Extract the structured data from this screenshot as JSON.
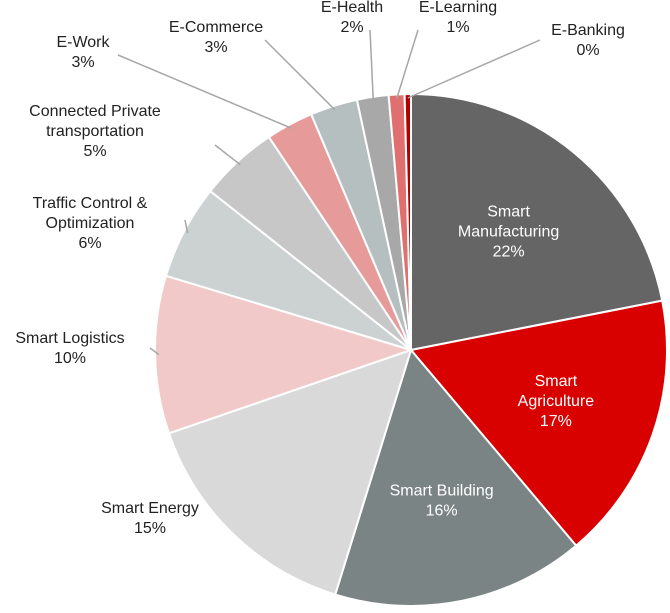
{
  "chart_data": {
    "type": "pie",
    "title": "",
    "start_angle_deg": 0,
    "direction": "clockwise",
    "slices": [
      {
        "name": "Smart Manufacturing",
        "label_lines": [
          "Smart",
          "Manufacturing"
        ],
        "value": 22,
        "display": "22%",
        "color": "#656565",
        "label_color": "#ffffff",
        "label_inside": true
      },
      {
        "name": "Smart Agriculture",
        "label_lines": [
          "Smart",
          "Agriculture"
        ],
        "value": 17,
        "display": "17%",
        "color": "#d90000",
        "label_color": "#ffffff",
        "label_inside": true
      },
      {
        "name": "Smart Building",
        "label_lines": [
          "Smart Building"
        ],
        "value": 16,
        "display": "16%",
        "color": "#7b8484",
        "label_color": "#ffffff",
        "label_inside": true
      },
      {
        "name": "Smart Energy",
        "label_lines": [
          "Smart Energy"
        ],
        "value": 15,
        "display": "15%",
        "color": "#d9d9d9",
        "label_color": "#222222",
        "label_inside": false
      },
      {
        "name": "Smart Logistics",
        "label_lines": [
          "Smart Logistics"
        ],
        "value": 10,
        "display": "10%",
        "color": "#f2c9c9",
        "label_color": "#222222",
        "label_inside": false
      },
      {
        "name": "Traffic Control & Optimization",
        "label_lines": [
          "Traffic Control &",
          "Optimization"
        ],
        "value": 6,
        "display": "6%",
        "color": "#ccd2d2",
        "label_color": "#222222",
        "label_inside": false
      },
      {
        "name": "Connected Private transportation",
        "label_lines": [
          "Connected Private",
          "transportation"
        ],
        "value": 5,
        "display": "5%",
        "color": "#c7c7c7",
        "label_color": "#222222",
        "label_inside": false
      },
      {
        "name": "E-Work",
        "label_lines": [
          "E-Work"
        ],
        "value": 3,
        "display": "3%",
        "color": "#e79a9a",
        "label_color": "#222222",
        "label_inside": false
      },
      {
        "name": "E-Commerce",
        "label_lines": [
          "E-Commerce"
        ],
        "value": 3,
        "display": "3%",
        "color": "#b6bfbf",
        "label_color": "#222222",
        "label_inside": false
      },
      {
        "name": "E-Health",
        "label_lines": [
          "E-Health"
        ],
        "value": 2,
        "display": "2%",
        "color": "#a8a8a8",
        "label_color": "#222222",
        "label_inside": false
      },
      {
        "name": "E-Learning",
        "label_lines": [
          "E-Learning"
        ],
        "value": 1,
        "display": "1%",
        "color": "#e07070",
        "label_color": "#222222",
        "label_inside": false
      },
      {
        "name": "E-Banking",
        "label_lines": [
          "E-Banking"
        ],
        "value": 0.4,
        "display": "0%",
        "color": "#b00000",
        "label_color": "#222222",
        "label_inside": false
      }
    ]
  }
}
